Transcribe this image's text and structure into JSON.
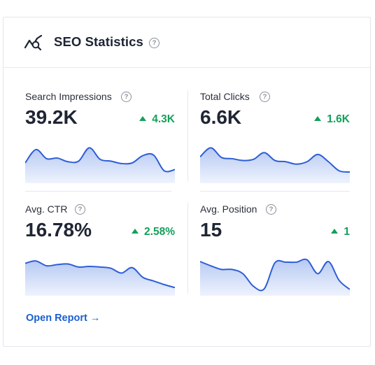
{
  "header": {
    "title": "SEO Statistics",
    "icon": "trend-search-icon",
    "help_icon": "help-circle-icon",
    "help_glyph": "?"
  },
  "stats": [
    {
      "label": "Search Impressions",
      "value": "39.2K",
      "change": "4.3K",
      "trend": "up",
      "series": [
        30,
        52,
        37,
        38,
        32,
        33,
        55,
        36,
        33,
        29,
        30,
        42,
        43,
        17,
        19
      ]
    },
    {
      "label": "Total Clicks",
      "value": "6.6K",
      "change": "1.6K",
      "trend": "up",
      "series": [
        40,
        55,
        39,
        37,
        34,
        36,
        47,
        34,
        32,
        28,
        32,
        44,
        32,
        17,
        15
      ]
    },
    {
      "label": "Avg. CTR",
      "value": "16.78%",
      "change": "2.58%",
      "trend": "up",
      "series": [
        50,
        54,
        46,
        48,
        49,
        44,
        45,
        44,
        42,
        34,
        43,
        27,
        21,
        15,
        10
      ]
    },
    {
      "label": "Avg. Position",
      "value": "15",
      "change": "1",
      "trend": "up",
      "series": [
        53,
        46,
        40,
        40,
        33,
        12,
        8,
        51,
        52,
        52,
        56,
        33,
        53,
        22,
        7
      ]
    }
  ],
  "colors": {
    "accent": "#1a5fd0",
    "positive": "#14a05a",
    "spark_line": "#2d5ed6",
    "spark_fill_top": "#b7c9f3",
    "spark_fill_bottom": "#eef3fd"
  },
  "footer": {
    "open_report_label": "Open Report →"
  }
}
